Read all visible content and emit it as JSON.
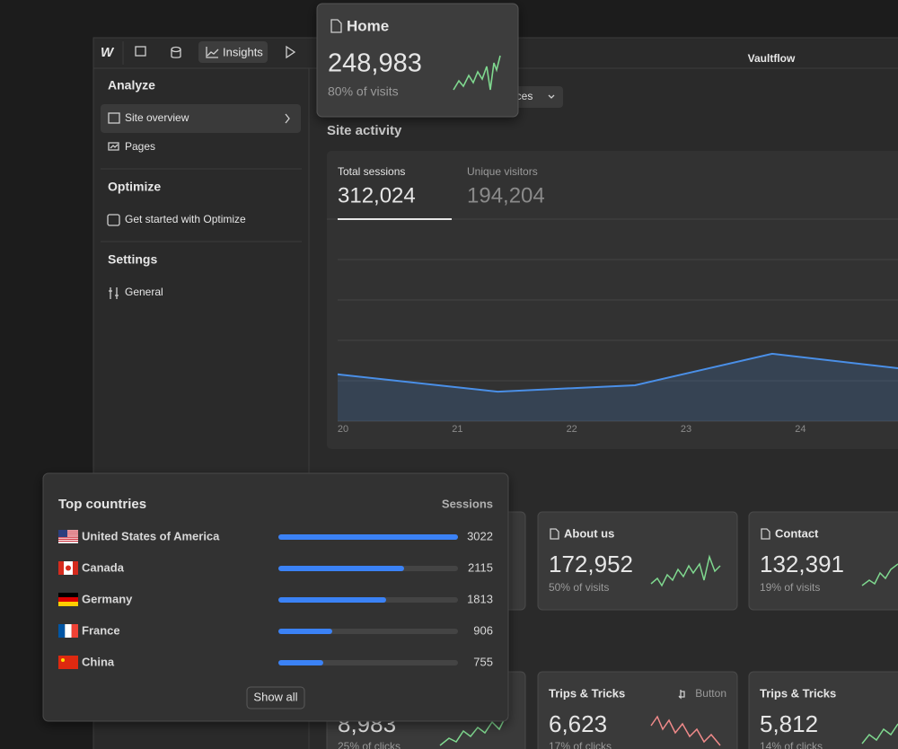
{
  "toolbar": {
    "insights": "Insights",
    "app_name": "Vaultflow"
  },
  "sidebar": {
    "sections": [
      {
        "title": "Analyze",
        "items": [
          "Site overview",
          "Pages"
        ]
      },
      {
        "title": "Optimize",
        "items": [
          "Get started with Optimize"
        ]
      },
      {
        "title": "Settings",
        "items": [
          "General"
        ]
      }
    ]
  },
  "filter": "vices",
  "site_activity": {
    "title": "Site activity",
    "tabs": [
      {
        "label": "Total sessions",
        "value": "312,024"
      },
      {
        "label": "Unique visitors",
        "value": "194,204"
      }
    ]
  },
  "activity_chart": {
    "type": "line",
    "x": [
      20,
      21.4,
      22.6,
      23.8,
      24.9
    ],
    "values": [
      1.16,
      0.73,
      0.89,
      1.67,
      1.31
    ],
    "xticks": [
      20,
      21,
      22,
      23,
      24
    ],
    "xlim": [
      20,
      24.9
    ],
    "ylim": [
      0,
      4
    ],
    "color": "#4a8fe7"
  },
  "home_card": {
    "title": "Home",
    "value": "248,983",
    "subtitle": "80% of visits"
  },
  "page_cards": [
    {
      "title": "About us",
      "value": "172,952",
      "subtitle": "50% of visits"
    },
    {
      "title": "Contact",
      "value": "132,391",
      "subtitle": "19% of visits"
    }
  ],
  "click_cards": [
    {
      "value": "8,983",
      "subtitle": "25% of clicks"
    },
    {
      "title": "Trips & Tricks",
      "tag": "Button",
      "value": "6,623",
      "subtitle": "17% of clicks"
    },
    {
      "title": "Trips & Tricks",
      "value": "5,812",
      "subtitle": "14% of clicks"
    }
  ],
  "countries": {
    "type": "bar",
    "title": "Top countries",
    "column": "Sessions",
    "categories": [
      "United States of America",
      "Canada",
      "Germany",
      "France",
      "China"
    ],
    "values": [
      3022,
      2115,
      1813,
      906,
      755
    ],
    "color": "#3b82f6",
    "button": "Show all"
  }
}
